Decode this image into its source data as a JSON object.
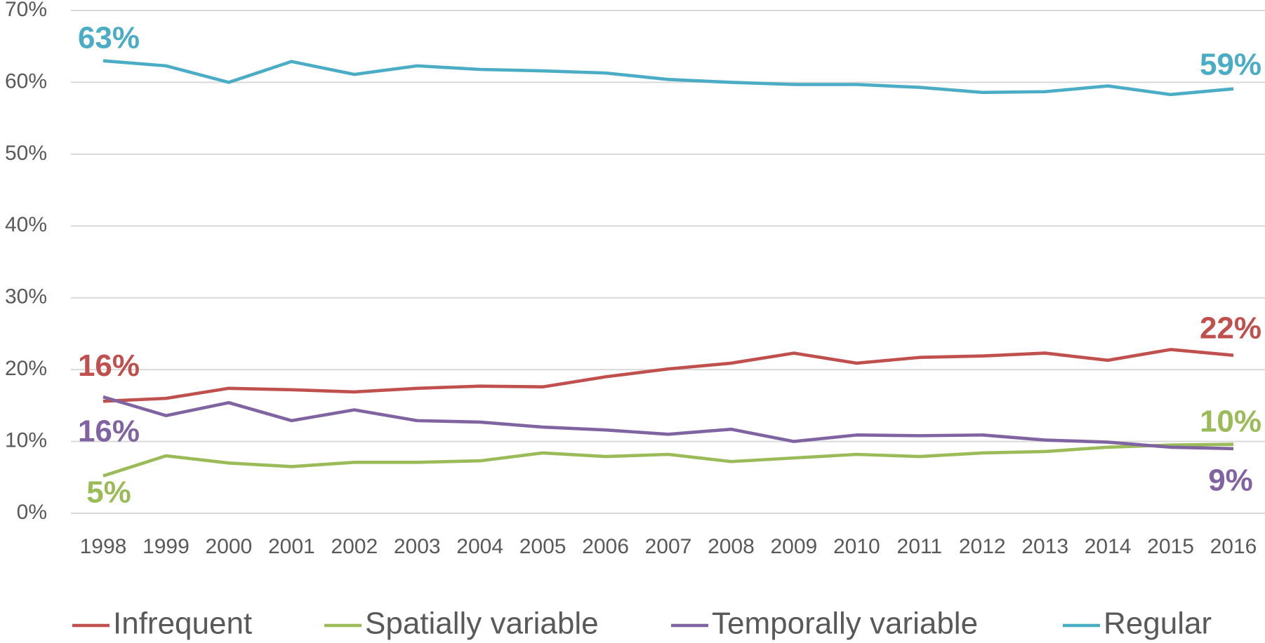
{
  "chart_data": {
    "type": "line",
    "categories": [
      "1998",
      "1999",
      "2000",
      "2001",
      "2002",
      "2003",
      "2004",
      "2005",
      "2006",
      "2007",
      "2008",
      "2009",
      "2010",
      "2011",
      "2012",
      "2013",
      "2014",
      "2015",
      "2016"
    ],
    "ylim": [
      0,
      70
    ],
    "yticks": [
      {
        "value": 0,
        "label": "0%"
      },
      {
        "value": 10,
        "label": "10%"
      },
      {
        "value": 20,
        "label": "20%"
      },
      {
        "value": 30,
        "label": "30%"
      },
      {
        "value": 40,
        "label": "40%"
      },
      {
        "value": 50,
        "label": "50%"
      },
      {
        "value": 60,
        "label": "60%"
      },
      {
        "value": 70,
        "label": "70%"
      }
    ],
    "grid": true,
    "legend": "bottom",
    "series": [
      {
        "name": "Infrequent",
        "color": "#c0504d",
        "values": [
          15.6,
          16.0,
          17.4,
          17.2,
          16.9,
          17.4,
          17.7,
          17.6,
          19.0,
          20.1,
          20.9,
          22.3,
          20.9,
          21.7,
          21.9,
          22.3,
          21.3,
          22.8,
          22.0
        ],
        "value_labels": [
          "16%",
          null,
          null,
          null,
          null,
          null,
          null,
          null,
          null,
          null,
          null,
          null,
          null,
          null,
          null,
          null,
          null,
          null,
          "22%"
        ]
      },
      {
        "name": "Spatially variable",
        "color": "#9bbb59",
        "values": [
          5.2,
          8.0,
          7.0,
          6.5,
          7.1,
          7.1,
          7.3,
          8.4,
          7.9,
          8.2,
          7.2,
          7.7,
          8.2,
          7.9,
          8.4,
          8.6,
          9.2,
          9.5,
          9.6
        ],
        "value_labels": [
          "5%",
          null,
          null,
          null,
          null,
          null,
          null,
          null,
          null,
          null,
          null,
          null,
          null,
          null,
          null,
          null,
          null,
          null,
          "10%"
        ]
      },
      {
        "name": "Temporally variable",
        "color": "#8064a2",
        "values": [
          16.2,
          13.6,
          15.4,
          12.9,
          14.4,
          12.9,
          12.7,
          12.0,
          11.6,
          11.0,
          11.7,
          10.0,
          10.9,
          10.8,
          10.9,
          10.2,
          9.9,
          9.2,
          9.0
        ],
        "value_labels": [
          "16%",
          null,
          null,
          null,
          null,
          null,
          null,
          null,
          null,
          null,
          null,
          null,
          null,
          null,
          null,
          null,
          null,
          null,
          "9%"
        ]
      },
      {
        "name": "Regular",
        "color": "#4bacc6",
        "values": [
          63,
          62.3,
          60.0,
          62.9,
          61.1,
          62.3,
          61.8,
          61.6,
          61.3,
          60.4,
          60.0,
          59.7,
          59.7,
          59.3,
          58.6,
          58.7,
          59.5,
          58.3,
          59.1
        ],
        "value_labels": [
          "63%",
          null,
          null,
          null,
          null,
          null,
          null,
          null,
          null,
          null,
          null,
          null,
          null,
          null,
          null,
          null,
          null,
          null,
          "59%"
        ]
      }
    ]
  }
}
